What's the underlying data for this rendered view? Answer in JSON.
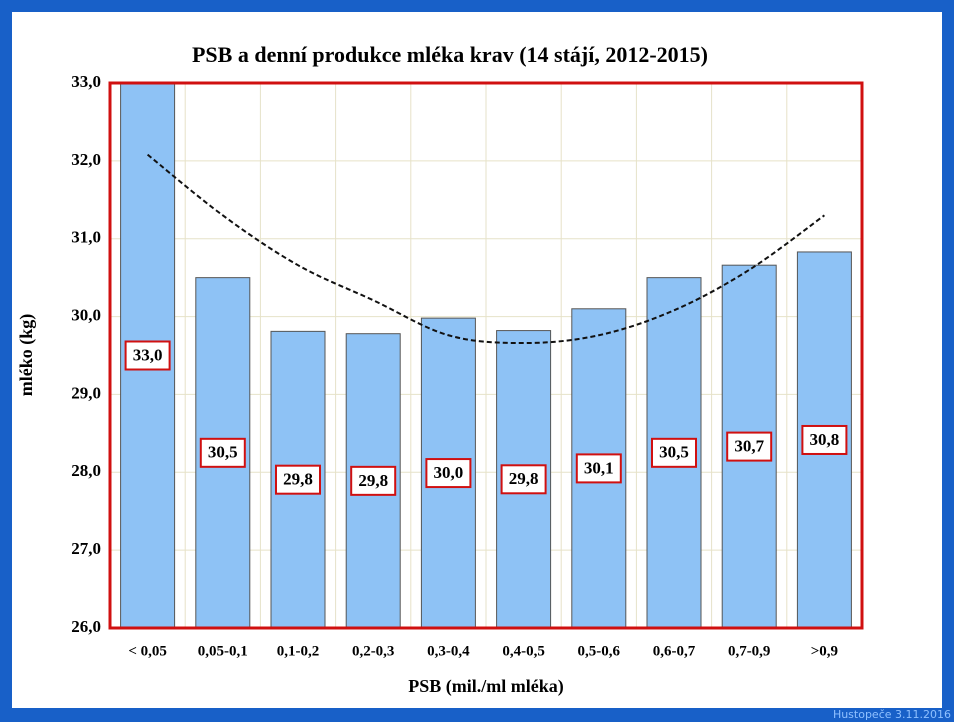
{
  "chart_data": {
    "type": "bar",
    "title": "PSB a denní produkce mléka krav (14 stájí, 2012-2015)",
    "x_label": "PSB (mil./ml mléka)",
    "y_label": "mléko (kg)",
    "categories": [
      "< 0,05",
      "0,05-0,1",
      "0,1-0,2",
      "0,2-0,3",
      "0,3-0,4",
      "0,4-0,5",
      "0,5-0,6",
      "0,6-0,7",
      "0,7-0,9",
      ">0,9"
    ],
    "values": [
      33.0,
      30.5,
      29.81,
      29.78,
      29.98,
      29.82,
      30.1,
      30.5,
      30.66,
      30.83
    ],
    "value_labels": [
      "33,0",
      "30,5",
      "29,8",
      "29,8",
      "30,0",
      "29,8",
      "30,1",
      "30,5",
      "30,7",
      "30,8"
    ],
    "trend_values": [
      32.08,
      31.3,
      30.66,
      30.21,
      29.76,
      29.66,
      29.76,
      30.08,
      30.6,
      31.3
    ],
    "color": "#8ec2f5",
    "ylim": [
      26,
      33
    ],
    "yticks": [
      {
        "value": 26,
        "label": "26,0"
      },
      {
        "value": 27,
        "label": "27,0"
      },
      {
        "value": 28,
        "label": "28,0"
      },
      {
        "value": 29,
        "label": "29,0"
      },
      {
        "value": 30,
        "label": "30,0"
      },
      {
        "value": 31,
        "label": "31,0"
      },
      {
        "value": 32,
        "label": "32,0"
      },
      {
        "value": 33,
        "label": "33,0"
      }
    ],
    "grid": true
  },
  "footer": "Hustopeče 3.11.2016"
}
